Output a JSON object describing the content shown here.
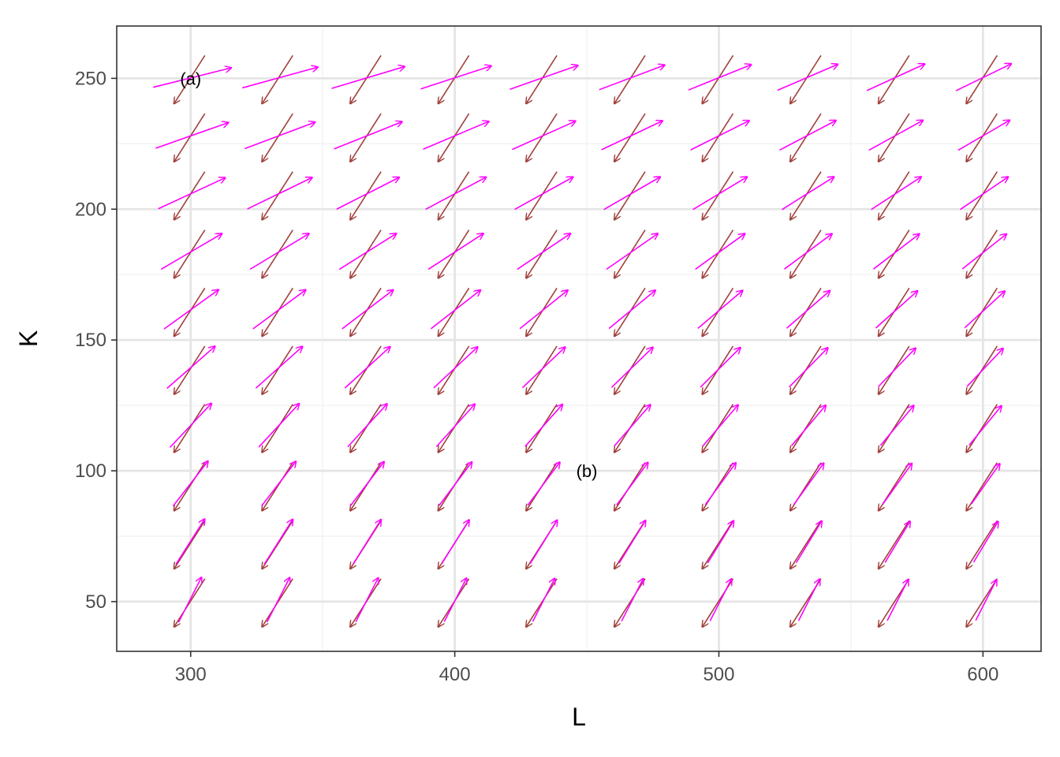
{
  "chart_data": {
    "type": "vector-field",
    "xlabel": "L",
    "ylabel": "K",
    "xlim": [
      272,
      622
    ],
    "ylim": [
      31,
      270
    ],
    "x_ticks": [
      300,
      400,
      500,
      600
    ],
    "y_ticks": [
      50,
      100,
      150,
      200,
      250
    ],
    "x_minor_ticks": [
      350,
      450,
      550
    ],
    "y_minor_ticks": [
      75,
      125,
      175,
      225
    ],
    "grid": true,
    "grid_points": {
      "L": [
        300,
        333.3,
        366.7,
        400,
        433.3,
        466.7,
        500,
        533.3,
        566.7,
        600
      ],
      "K": [
        50,
        72.2,
        94.4,
        116.7,
        138.9,
        161.1,
        183.3,
        205.6,
        227.8,
        250
      ]
    },
    "series": [
      {
        "color": "#a0413c",
        "arrow_end": "start"
      },
      {
        "color": "#ff00ff",
        "arrow_end": "end"
      }
    ],
    "annotations": [
      {
        "label": "(a)",
        "x": 300,
        "y": 250
      },
      {
        "label": "(b)",
        "x": 450,
        "y": 100
      }
    ],
    "colors": {
      "panel_border": "#333333",
      "grid_major": "#e5e5e5",
      "grid_minor": "#f2f2f2",
      "tick": "#333333"
    }
  }
}
